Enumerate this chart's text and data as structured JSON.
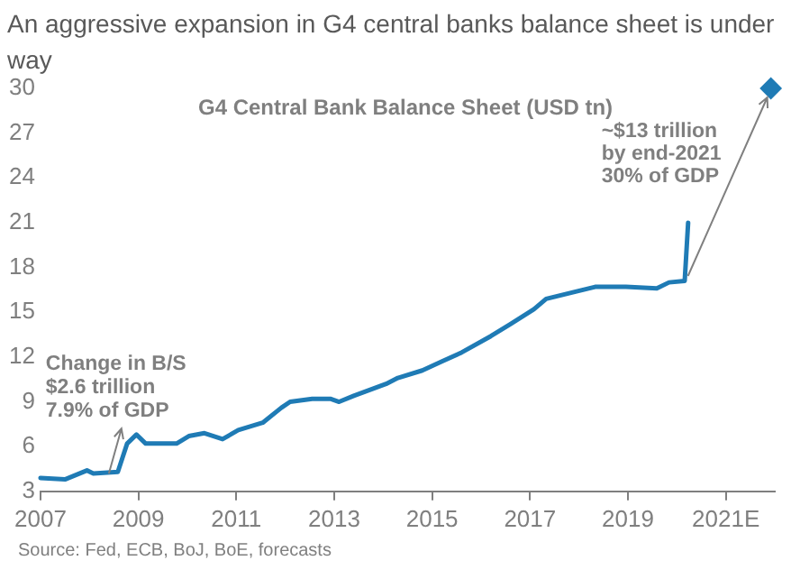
{
  "chart_data": {
    "type": "line",
    "title": "An aggressive expansion in G4 central banks balance sheet is under way",
    "subtitle": "G4 Central Bank Balance Sheet (USD tn)",
    "xlim": [
      2007,
      2022
    ],
    "xticks": [
      2007,
      2009,
      2011,
      2013,
      2015,
      2017,
      2019,
      {
        "value": 2021,
        "label": "2021E"
      }
    ],
    "ylim": [
      3,
      30
    ],
    "yticks": [
      3,
      6,
      9,
      12,
      15,
      18,
      21,
      24,
      27,
      30
    ],
    "grid": false,
    "legend": false,
    "marker": "none",
    "series": [
      {
        "color": "#1f7bb5",
        "x": [
          2007,
          2007.5,
          2007.95,
          2008.08,
          2008.58,
          2008.77,
          2008.96,
          2009.15,
          2009.78,
          2010.03,
          2010.35,
          2010.72,
          2011.04,
          2011.54,
          2011.92,
          2012.1,
          2012.55,
          2012.92,
          2013.1,
          2013.4,
          2014.06,
          2014.3,
          2014.8,
          2015.2,
          2015.6,
          2016.2,
          2016.6,
          2017.08,
          2017.33,
          2017.95,
          2018.33,
          2018.96,
          2019.59,
          2019.84,
          2020.16,
          2020.23
        ],
        "values": [
          3.9,
          3.8,
          4.4,
          4.2,
          4.3,
          6.2,
          6.8,
          6.2,
          6.2,
          6.7,
          6.9,
          6.5,
          7.1,
          7.6,
          8.6,
          9.0,
          9.2,
          9.2,
          9.0,
          9.4,
          10.2,
          10.6,
          11.1,
          11.7,
          12.3,
          13.4,
          14.2,
          15.2,
          15.9,
          16.4,
          16.7,
          16.7,
          16.6,
          17.0,
          17.1,
          21.0
        ]
      },
      {
        "type": "scatter",
        "marker": "diamond",
        "color": "#1f7bb5",
        "x": [
          2021.92
        ],
        "values": [
          30
        ]
      }
    ],
    "annotations": [
      {
        "text": "Change in B/S\n$2.6 trillion\n7.9% of GDP",
        "x": 2008.58,
        "y": 4.3
      },
      {
        "text": "~$13 trillion\nby end-2021\n30% of GDP",
        "x": 2021.92,
        "y": 30
      },
      "Source: Fed, ECB, BoJ, BoE, forecasts"
    ]
  }
}
